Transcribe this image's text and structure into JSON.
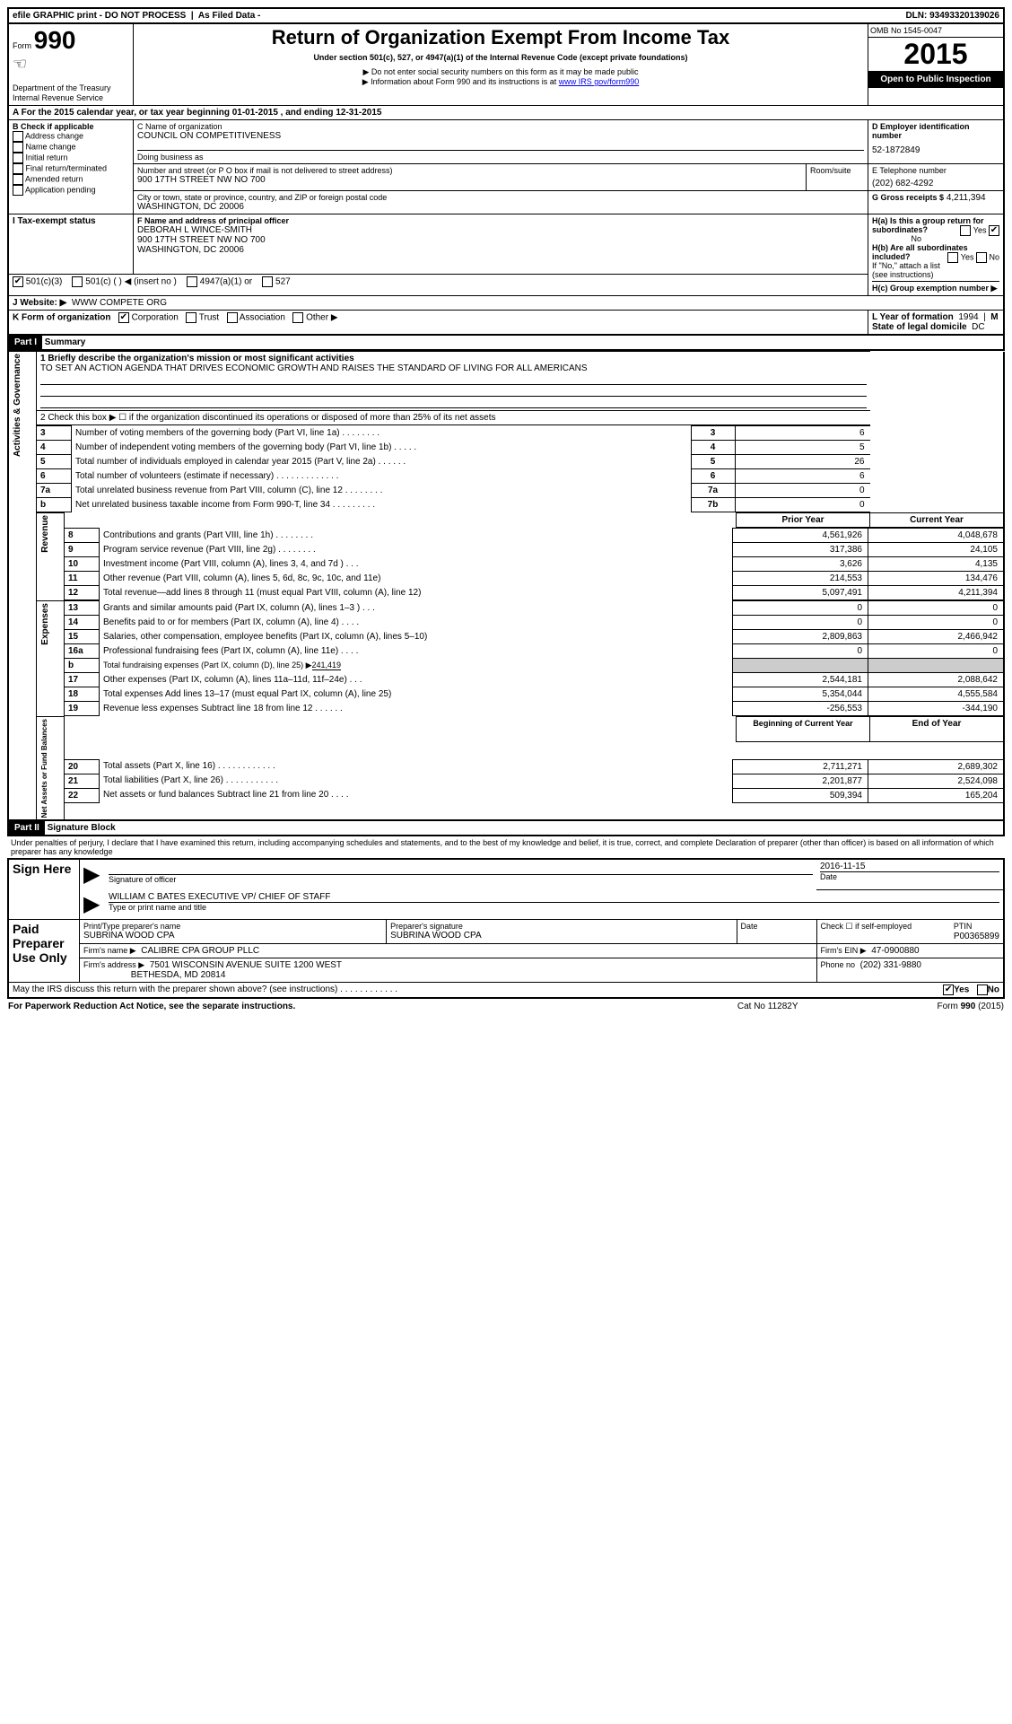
{
  "top_bar": {
    "efile": "efile GRAPHIC print - DO NOT PROCESS",
    "as_filed": "As Filed Data -",
    "dln_label": "DLN:",
    "dln": "93493320139026"
  },
  "header": {
    "form_label": "Form",
    "form_no": "990",
    "dept": "Department of the Treasury",
    "irs": "Internal Revenue Service",
    "title": "Return of Organization Exempt From Income Tax",
    "subtitle": "Under section 501(c), 527, or 4947(a)(1) of the Internal Revenue Code (except private foundations)",
    "note1": "▶ Do not enter social security numbers on this form as it may be made public",
    "note2": "▶ Information about Form 990 and its instructions is at ",
    "note2_link": "www IRS gov/form990",
    "omb": "OMB No 1545-0047",
    "year": "2015",
    "open": "Open to Public Inspection"
  },
  "section_a": {
    "year_line": "A  For the 2015 calendar year, or tax year beginning 01-01-2015     , and ending 12-31-2015"
  },
  "section_b": {
    "label": "B  Check if applicable",
    "items": [
      "Address change",
      "Name change",
      "Initial return",
      "Final return/terminated",
      "Amended return",
      "Application pending"
    ]
  },
  "section_c": {
    "name_label": "C  Name of organization",
    "name": "COUNCIL ON COMPETITIVENESS",
    "dba_label": "Doing business as",
    "street_label": "Number and street (or P O  box if mail is not delivered to street address)",
    "room_label": "Room/suite",
    "street": "900 17TH STREET NW NO 700",
    "city_label": "City or town, state or province, country, and ZIP or foreign postal code",
    "city": "WASHINGTON, DC  20006"
  },
  "section_d": {
    "label": "D Employer identification number",
    "value": "52-1872849"
  },
  "section_e": {
    "label": "E Telephone number",
    "value": "(202) 682-4292"
  },
  "section_g": {
    "label": "G Gross receipts $",
    "value": "4,211,394"
  },
  "section_f": {
    "label": "F  Name and address of principal officer",
    "line1": "DEBORAH L WINCE-SMITH",
    "line2": "900 17TH STREET NW NO 700",
    "line3": "WASHINGTON, DC  20006"
  },
  "section_h": {
    "ha": "H(a)  Is this a group return for subordinates?",
    "ha_no": "No",
    "hb": "H(b)  Are all subordinates included?",
    "hb_note": "If \"No,\" attach a list  (see instructions)",
    "hc": "H(c)  Group exemption number ▶"
  },
  "section_i": {
    "label": "I   Tax-exempt status",
    "opts": [
      "501(c)(3)",
      "501(c) (  ) ◀ (insert no )",
      "4947(a)(1) or",
      "527"
    ]
  },
  "section_j": {
    "label": "J   Website: ▶",
    "value": "WWW COMPETE ORG"
  },
  "section_k": {
    "label": "K Form of organization",
    "opts": [
      "Corporation",
      "Trust",
      "Association",
      "Other ▶"
    ]
  },
  "section_l": {
    "label": "L Year of formation",
    "value": "1994"
  },
  "section_m": {
    "label": "M State of legal domicile",
    "value": "DC"
  },
  "part1": {
    "hdr": "Part I",
    "title": "Summary",
    "q1_label": "1 Briefly describe the organization's mission or most significant activities",
    "q1_text": "TO SET AN ACTION AGENDA THAT DRIVES ECONOMIC GROWTH AND RAISES THE STANDARD OF LIVING FOR ALL AMERICANS",
    "q2": "2  Check this box ▶ ☐ if the organization discontinued its operations or disposed of more than 25% of its net assets",
    "rows_ag": [
      {
        "n": "3",
        "t": "Number of voting members of the governing body (Part VI, line 1a)  .   .   .   .   .   .   .   .",
        "k": "3",
        "v": "6"
      },
      {
        "n": "4",
        "t": "Number of independent voting members of the governing body (Part VI, line 1b)  .   .   .   .   .",
        "k": "4",
        "v": "5"
      },
      {
        "n": "5",
        "t": "Total number of individuals employed in calendar year 2015 (Part V, line 2a)  .   .   .   .   .   .",
        "k": "5",
        "v": "26"
      },
      {
        "n": "6",
        "t": "Total number of volunteers (estimate if necessary)  .   .   .   .   .   .   .   .   .   .   .   .   .",
        "k": "6",
        "v": "6"
      },
      {
        "n": "7a",
        "t": "Total unrelated business revenue from Part VIII, column (C), line 12  .   .   .   .   .   .   .   .",
        "k": "7a",
        "v": "0"
      },
      {
        "n": "b",
        "t": "Net unrelated business taxable income from Form 990-T, line 34   .   .   .   .   .   .   .   .   .",
        "k": "7b",
        "v": "0"
      }
    ],
    "col_prior": "Prior Year",
    "col_current": "Current Year",
    "rev_rows": [
      {
        "n": "8",
        "t": "Contributions and grants (Part VIII, line 1h)   .   .   .   .   .   .   .   .",
        "p": "4,561,926",
        "c": "4,048,678"
      },
      {
        "n": "9",
        "t": "Program service revenue (Part VIII, line 2g)   .   .   .   .   .   .   .   .",
        "p": "317,386",
        "c": "24,105"
      },
      {
        "n": "10",
        "t": "Investment income (Part VIII, column (A), lines 3, 4, and 7d )   .   .   .",
        "p": "3,626",
        "c": "4,135"
      },
      {
        "n": "11",
        "t": "Other revenue (Part VIII, column (A), lines 5, 6d, 8c, 9c, 10c, and 11e)",
        "p": "214,553",
        "c": "134,476"
      },
      {
        "n": "12",
        "t": "Total revenue—add lines 8 through 11 (must equal Part VIII, column (A), line 12)",
        "p": "5,097,491",
        "c": "4,211,394"
      }
    ],
    "exp_rows": [
      {
        "n": "13",
        "t": "Grants and similar amounts paid (Part IX, column (A), lines 1–3 )  .   .   .",
        "p": "0",
        "c": "0"
      },
      {
        "n": "14",
        "t": "Benefits paid to or for members (Part IX, column (A), line 4)   .   .   .   .",
        "p": "0",
        "c": "0"
      },
      {
        "n": "15",
        "t": "Salaries, other compensation, employee benefits (Part IX, column (A), lines 5–10)",
        "p": "2,809,863",
        "c": "2,466,942"
      },
      {
        "n": "16a",
        "t": "Professional fundraising fees (Part IX, column (A), line 11e)  .   .   .   .",
        "p": "0",
        "c": "0"
      },
      {
        "n": "b",
        "t": "Total fundraising expenses (Part IX, column (D), line 25) ▶",
        "p": "",
        "c": "",
        "extra": "241,419"
      },
      {
        "n": "17",
        "t": "Other expenses (Part IX, column (A), lines 11a–11d, 11f–24e)   .   .   .",
        "p": "2,544,181",
        "c": "2,088,642"
      },
      {
        "n": "18",
        "t": "Total expenses  Add lines 13–17 (must equal Part IX, column (A), line 25)",
        "p": "5,354,044",
        "c": "4,555,584"
      },
      {
        "n": "19",
        "t": "Revenue less expenses  Subtract line 18 from line 12   .   .   .   .   .   .",
        "p": "-256,553",
        "c": "-344,190"
      }
    ],
    "col_beg": "Beginning of Current Year",
    "col_end": "End of Year",
    "na_rows": [
      {
        "n": "20",
        "t": "Total assets (Part X, line 16)   .   .   .   .   .   .   .   .   .   .   .   .",
        "p": "2,711,271",
        "c": "2,689,302"
      },
      {
        "n": "21",
        "t": "Total liabilities (Part X, line 26)   .   .   .   .   .   .   .   .   .   .   .",
        "p": "2,201,877",
        "c": "2,524,098"
      },
      {
        "n": "22",
        "t": "Net assets or fund balances  Subtract line 21 from line 20  .   .   .   .",
        "p": "509,394",
        "c": "165,204"
      }
    ],
    "side_ag": "Activities & Governance",
    "side_rev": "Revenue",
    "side_exp": "Expenses",
    "side_na": "Net Assets or Fund Balances"
  },
  "part2": {
    "hdr": "Part II",
    "title": "Signature Block",
    "perjury": "Under penalties of perjury, I declare that I have examined this return, including accompanying schedules and statements, and to the best of my knowledge and belief, it is true, correct, and complete  Declaration of preparer (other than officer) is based on all information of which preparer has any knowledge",
    "sign_here": "Sign Here",
    "sig_officer": "Signature of officer",
    "sig_date": "Date",
    "sig_date_val": "2016-11-15",
    "officer_name": "WILLIAM C BATES EXECUTIVE VP/ CHIEF OF STAFF",
    "type_name": "Type or print name and title",
    "paid": "Paid Preparer Use Only",
    "prep_name_label": "Print/Type preparer's name",
    "prep_name": "SUBRINA WOOD CPA",
    "prep_sig_label": "Preparer's signature",
    "prep_sig": "SUBRINA WOOD CPA",
    "date_label": "Date",
    "check_self": "Check ☐ if self-employed",
    "ptin_label": "PTIN",
    "ptin": "P00365899",
    "firm_name_label": "Firm's name    ▶",
    "firm_name": "CALIBRE CPA GROUP PLLC",
    "firm_ein_label": "Firm's EIN ▶",
    "firm_ein": "47-0900880",
    "firm_addr_label": "Firm's address ▶",
    "firm_addr1": "7501 WISCONSIN AVENUE SUITE 1200 WEST",
    "firm_addr2": "BETHESDA, MD  20814",
    "phone_label": "Phone no",
    "phone": "(202) 331-9880",
    "discuss": "May the IRS discuss this return with the preparer shown above? (see instructions)   .   .   .   .   .   .   .   .   .   .   .   .",
    "yes": "Yes",
    "no": "No"
  },
  "footer": {
    "paperwork": "For Paperwork Reduction Act Notice, see the separate instructions.",
    "cat": "Cat No  11282Y",
    "form": "Form",
    "formno": "990",
    "formyear": "(2015)"
  }
}
